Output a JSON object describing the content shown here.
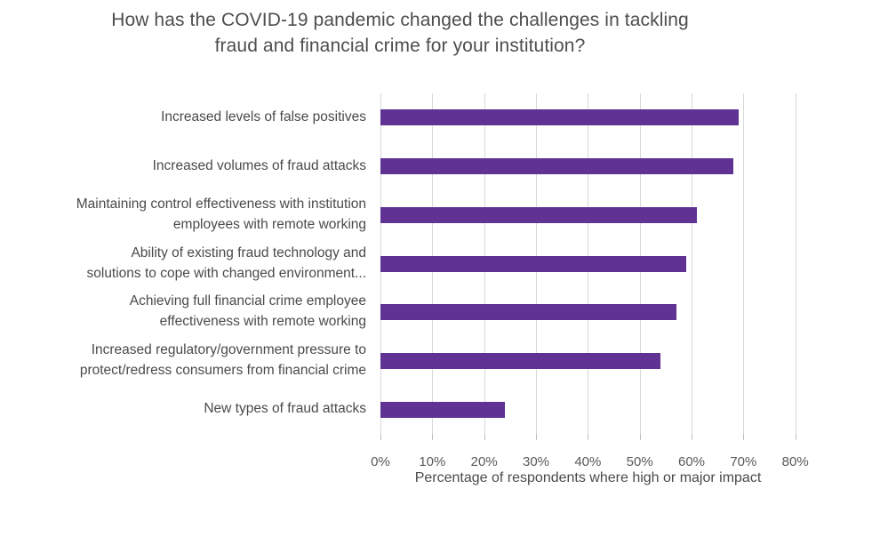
{
  "chart_data": {
    "type": "bar",
    "orientation": "horizontal",
    "title": "How has the COVID-19 pandemic changed the challenges in tackling fraud and financial crime for your institution?",
    "categories": [
      "Increased levels of false positives",
      "Increased volumes of fraud attacks",
      "Maintaining control effectiveness with institution employees with remote working",
      "Ability of existing fraud technology and solutions to cope with changed environment...",
      "Achieving full financial crime employee effectiveness with remote working",
      "Increased regulatory/government pressure to protect/redress consumers from financial crime",
      "New types of fraud attacks"
    ],
    "category_lines": [
      [
        "Increased levels of false positives"
      ],
      [
        "Increased volumes of fraud attacks"
      ],
      [
        "Maintaining control effectiveness with institution",
        "employees with remote working"
      ],
      [
        "Ability of existing fraud technology and",
        "solutions to cope with changed environment..."
      ],
      [
        "Achieving full financial crime employee",
        "effectiveness with remote working"
      ],
      [
        "Increased regulatory/government pressure to",
        "protect/redress consumers from financial crime"
      ],
      [
        "New types of fraud attacks"
      ]
    ],
    "values": [
      69,
      68,
      61,
      59,
      57,
      54,
      24
    ],
    "xlabel": "Percentage of respondents where high or major impact",
    "xlim": [
      0,
      80
    ],
    "xticks": [
      0,
      10,
      20,
      30,
      40,
      50,
      60,
      70,
      80
    ],
    "xtick_labels": [
      "0%",
      "10%",
      "20%",
      "30%",
      "40%",
      "50%",
      "60%",
      "70%",
      "80%"
    ],
    "grid": true,
    "legend": false,
    "bar_color": "#5f3294"
  },
  "colors": {
    "bar": "#5f3294",
    "gridline": "#d9d9d9",
    "tick": "#bfbfbf",
    "title_text": "#4d4d4d",
    "label_text": "#4a4a4a",
    "axis_text": "#595959",
    "background": "#ffffff"
  }
}
